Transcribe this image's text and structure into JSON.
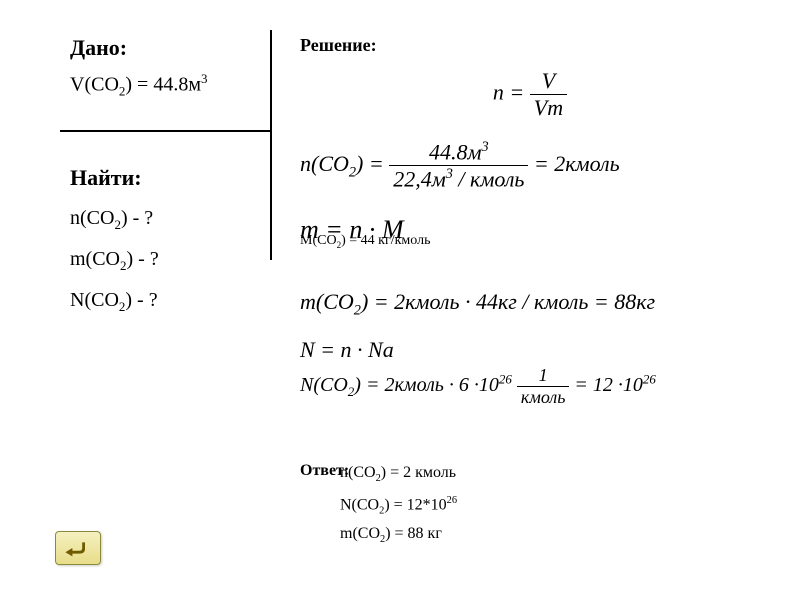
{
  "given": {
    "title": "Дано:",
    "volume_html": "V(CO<sub>2</sub>) = 44.8м<sup>3</sup>"
  },
  "find": {
    "title": "Найти:",
    "l1": "n(CO<sub>2</sub>) - ?",
    "l2": "m(CO<sub>2</sub>) - ?",
    "l3": "N(CO<sub>2</sub>) - ?"
  },
  "solution": {
    "title": "Решение:",
    "f1_lhs": "n =",
    "f1_num": "V",
    "f1_den": "Vm",
    "f2_lhs": "n(CO<sub>2</sub>) =",
    "f2_num": "44.8м<sup>3</sup>",
    "f2_den": "22,4м<sup>3</sup> / кмоль",
    "f2_rhs": "= 2кмоль",
    "f3": "m = n · M",
    "f3b": "M(CO<sub>2</sub>) = 44 кг/кмоль",
    "f4": "m(CO<sub>2</sub>) = 2кмоль · 44кг / кмоль = 88кг",
    "f5": "N = n · Na",
    "f6_lhs": "N(CO<sub>2</sub>) = 2кмоль · 6 ·10<sup>26</sup>",
    "f6_num": "1",
    "f6_den": "кмоль",
    "f6_rhs": " = 12 ·10<sup>26</sup>"
  },
  "answer": {
    "label": "Ответ:",
    "l1": "n(CO<sub>2</sub>) = 2 кмоль",
    "l2": "N(CO<sub>2</sub>) = 12*10<sup>26</sup>",
    "l3": "m(CO<sub>2</sub>) = 88 кг"
  },
  "colors": {
    "page_bg": "#ffffff",
    "text": "#000000",
    "button_bg_top": "#f5f0c0",
    "button_bg_bottom": "#e8dd8a",
    "button_border": "#8a8a3a",
    "arrow_fill": "#6f5c00"
  },
  "typography": {
    "body_font": "Times New Roman",
    "title_size_pt": 16,
    "text_size_pt": 15,
    "formula_size_pt": 16
  }
}
